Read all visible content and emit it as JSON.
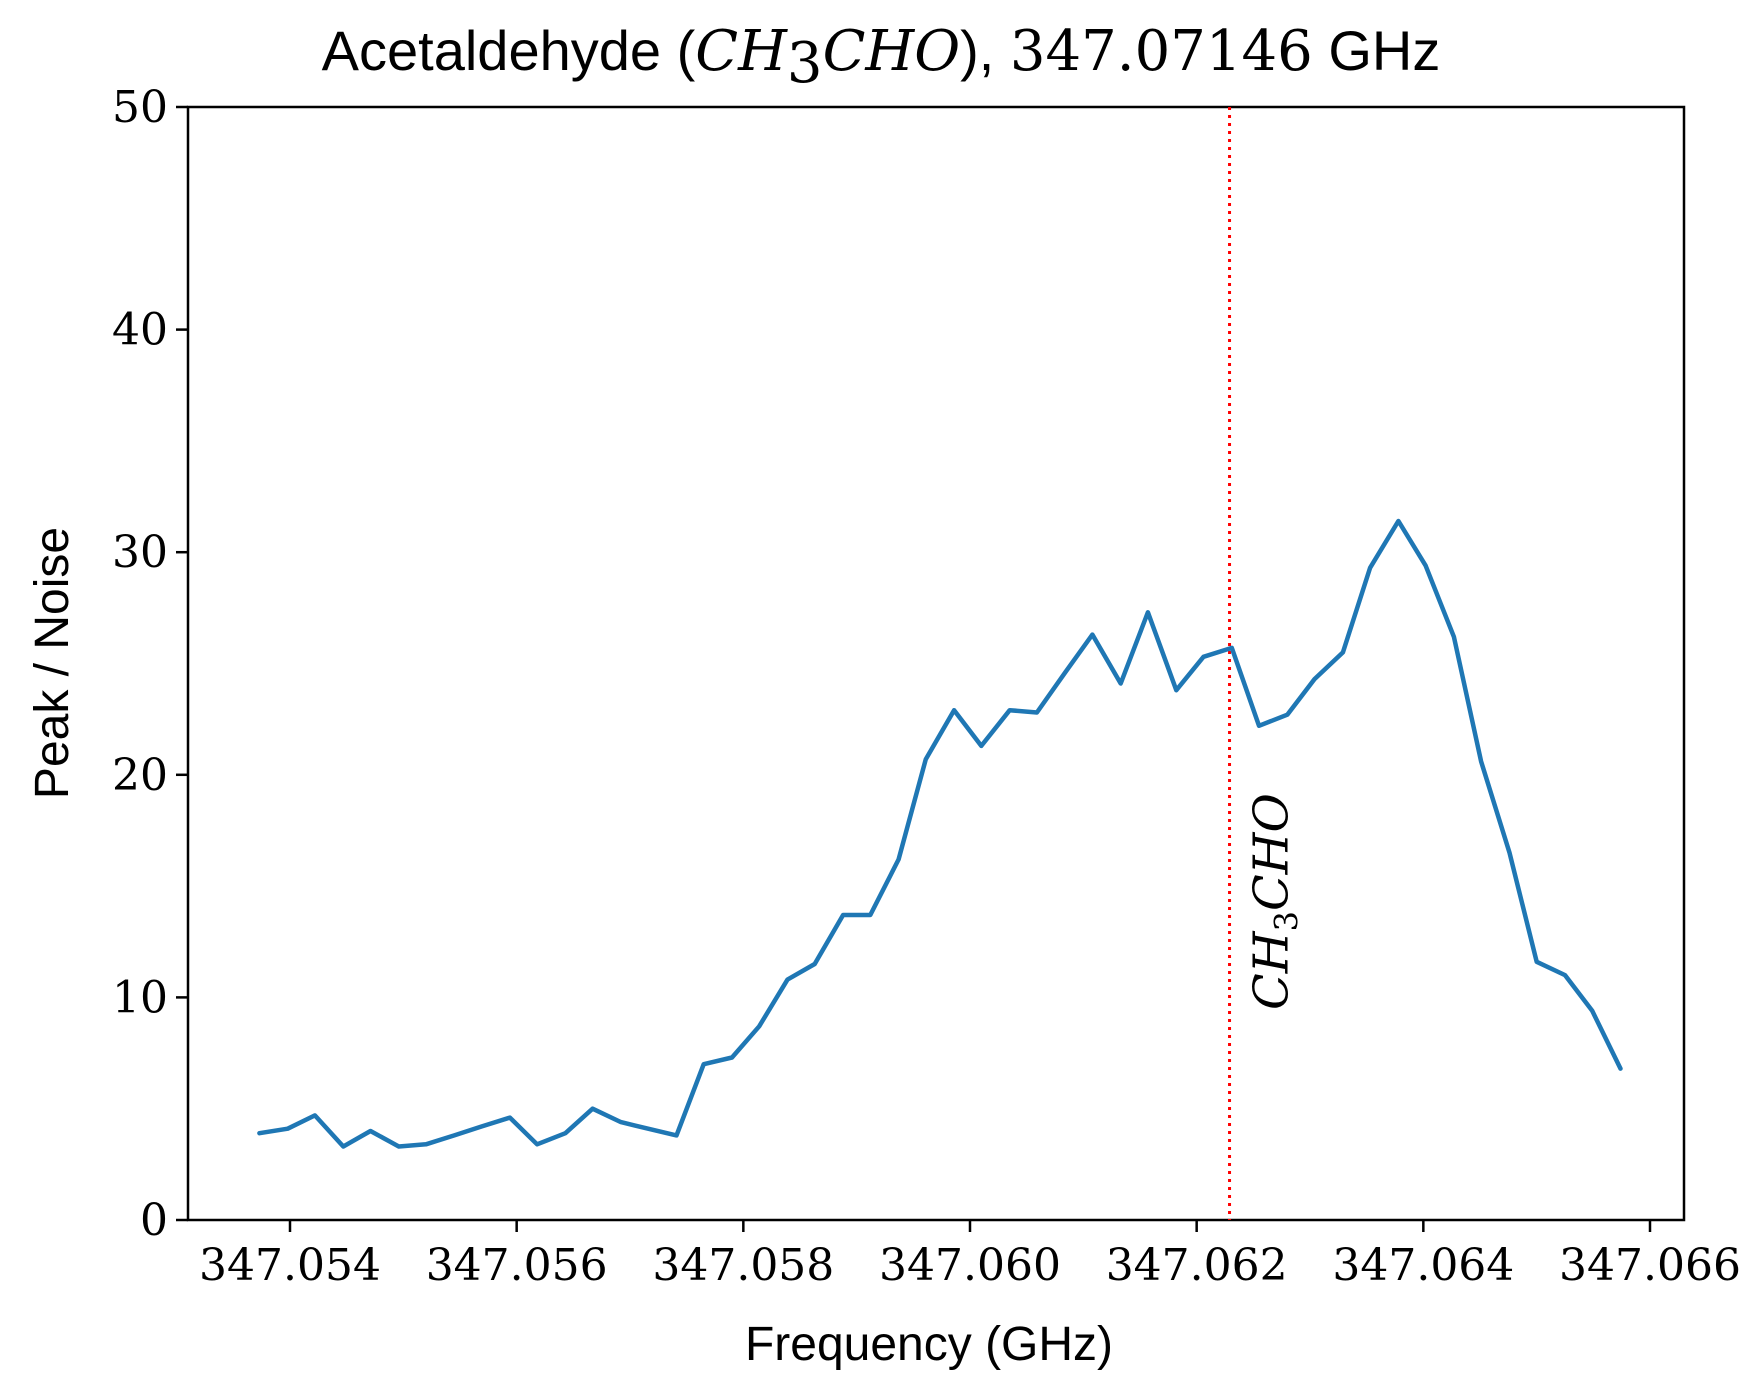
{
  "chart_data": {
    "type": "line",
    "title": {
      "prefix": "Acetaldehyde (",
      "formula_main": "CH",
      "formula_sub": "3",
      "formula_rest": "CHO",
      "suffix": "), ",
      "frequency": "347.07146",
      "unit": " GHz"
    },
    "xlabel": "Frequency (GHz)",
    "ylabel": "Peak / Noise",
    "xlim": [
      347.0531,
      347.0663
    ],
    "ylim": [
      0,
      50
    ],
    "xticks": [
      347.054,
      347.056,
      347.058,
      347.06,
      347.062,
      347.064,
      347.066
    ],
    "xtick_labels": [
      "347.054",
      "347.056",
      "347.058",
      "347.060",
      "347.062",
      "347.064",
      "347.066"
    ],
    "yticks": [
      0,
      10,
      20,
      30,
      40,
      50
    ],
    "ytick_labels": [
      "0",
      "10",
      "20",
      "30",
      "40",
      "50"
    ],
    "grid": false,
    "line_color": "#1f77b4",
    "marker_color": "#ff0000",
    "series": [
      {
        "x": [
          347.05373,
          347.05398,
          347.05422,
          347.05447,
          347.05471,
          347.05496,
          347.0552,
          347.05545,
          347.05569,
          347.05594,
          347.05618,
          347.05643,
          347.05667,
          347.05692,
          347.05716,
          347.05741,
          347.05765,
          347.0579,
          347.05814,
          347.05839,
          347.05863,
          347.05888,
          347.05912,
          347.05937,
          347.05961,
          347.05986,
          347.0601,
          347.06035,
          347.06059,
          347.06084,
          347.06108,
          347.06133,
          347.06157,
          347.06182,
          347.06206,
          347.06231,
          347.06255,
          347.0628,
          347.06304,
          347.06329,
          347.06353,
          347.06378,
          347.06402,
          347.06427,
          347.06451,
          347.06476,
          347.065,
          347.06525,
          347.06549,
          347.06574
        ],
        "values": [
          3.9,
          4.1,
          4.7,
          3.3,
          4.0,
          3.3,
          3.4,
          3.8,
          4.2,
          4.6,
          3.4,
          3.9,
          5.0,
          4.4,
          4.1,
          3.8,
          7.0,
          7.3,
          8.7,
          10.8,
          11.5,
          13.7,
          13.7,
          16.2,
          20.7,
          22.9,
          21.3,
          22.9,
          22.8,
          24.6,
          26.3,
          24.1,
          27.3,
          23.8,
          25.3,
          25.7,
          22.2,
          22.7,
          24.3,
          25.5,
          29.3,
          31.4,
          29.4,
          26.2,
          20.6,
          16.5,
          11.6,
          11.0,
          9.4,
          6.8
        ]
      }
    ],
    "annotations": [
      {
        "x": 347.06229,
        "line_style": "dotted",
        "label_main": "CH",
        "label_sub": "3",
        "label_rest": "CHO"
      }
    ]
  }
}
